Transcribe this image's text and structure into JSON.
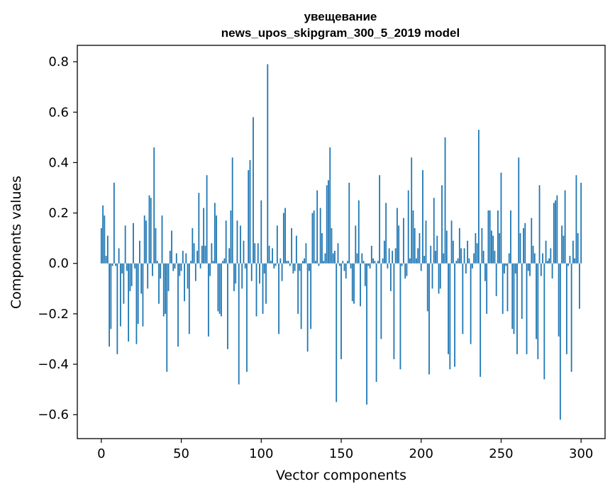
{
  "chart_data": {
    "type": "bar",
    "title_line1": "увещевание",
    "title_line2": "news_upos_skipgram_300_5_2019 model",
    "xlabel": "Vector components",
    "ylabel": "Components values",
    "xlim": [
      -15,
      315
    ],
    "ylim": [
      -0.695,
      0.865
    ],
    "xticks": [
      0,
      50,
      100,
      150,
      200,
      250,
      300
    ],
    "yticks": [
      -0.6,
      -0.4,
      -0.2,
      0.0,
      0.2,
      0.4,
      0.6,
      0.8
    ],
    "xtick_labels": [
      "0",
      "50",
      "100",
      "150",
      "200",
      "250",
      "300"
    ],
    "ytick_labels": [
      "−0.6",
      "−0.4",
      "−0.2",
      "0.0",
      "0.2",
      "0.4",
      "0.6",
      "0.8"
    ],
    "bar_color": "#1f77b4",
    "grid": false,
    "legend": "none",
    "values": [
      0.14,
      0.23,
      0.19,
      0.03,
      0.11,
      -0.33,
      -0.26,
      -0.01,
      0.32,
      -0.01,
      -0.36,
      0.06,
      -0.25,
      -0.04,
      -0.16,
      0.15,
      -0.03,
      -0.31,
      -0.11,
      -0.09,
      0.16,
      -0.02,
      -0.32,
      -0.24,
      0.09,
      -0.12,
      -0.25,
      0.19,
      0.17,
      -0.1,
      0.27,
      0.26,
      -0.05,
      0.46,
      0.14,
      0.01,
      -0.16,
      -0.06,
      0.19,
      -0.21,
      -0.2,
      -0.43,
      -0.11,
      0.05,
      0.13,
      -0.03,
      -0.02,
      0.04,
      -0.33,
      -0.05,
      -0.03,
      0.05,
      -0.15,
      0.04,
      -0.1,
      -0.28,
      0.01,
      0.14,
      0.08,
      -0.07,
      0.05,
      0.28,
      -0.02,
      0.07,
      0.22,
      0.07,
      0.35,
      -0.29,
      -0.05,
      0.08,
      0.01,
      0.24,
      0.19,
      -0.19,
      -0.2,
      -0.21,
      0.01,
      0.02,
      0.17,
      -0.34,
      0.06,
      0.21,
      0.42,
      -0.11,
      -0.08,
      0.17,
      -0.48,
      0.15,
      -0.1,
      0.09,
      -0.02,
      -0.43,
      0.37,
      0.41,
      -0.07,
      0.58,
      0.08,
      -0.21,
      0.08,
      -0.08,
      0.25,
      -0.2,
      -0.04,
      -0.16,
      0.79,
      0.07,
      0.01,
      0.06,
      -0.02,
      -0.01,
      0.15,
      -0.28,
      0.02,
      -0.07,
      0.2,
      0.22,
      0.01,
      0.01,
      -0.01,
      0.14,
      -0.04,
      -0.03,
      0.11,
      -0.2,
      -0.03,
      -0.26,
      0.01,
      0.02,
      0.08,
      -0.35,
      -0.03,
      -0.26,
      0.2,
      0.21,
      0.01,
      0.29,
      -0.01,
      0.22,
      0.12,
      0.01,
      0.04,
      0.31,
      0.33,
      0.46,
      0.14,
      0.04,
      0.05,
      -0.55,
      0.08,
      -0.01,
      -0.38,
      0.01,
      -0.03,
      -0.06,
      0.01,
      0.32,
      -0.02,
      -0.15,
      -0.16,
      0.15,
      0.04,
      0.25,
      -0.17,
      0.04,
      0.01,
      -0.09,
      -0.56,
      -0.01,
      -0.02,
      0.07,
      0.02,
      0.01,
      -0.47,
      0.01,
      0.35,
      -0.3,
      0.02,
      0.09,
      0.24,
      -0.02,
      0.06,
      -0.11,
      0.05,
      -0.38,
      0.06,
      0.22,
      0.15,
      -0.42,
      -0.01,
      0.18,
      -0.06,
      -0.05,
      0.29,
      0.02,
      0.42,
      0.21,
      0.14,
      0.02,
      0.06,
      0.12,
      -0.03,
      0.37,
      0.03,
      0.17,
      -0.19,
      -0.44,
      0.07,
      -0.1,
      0.26,
      0.05,
      0.11,
      -0.12,
      -0.1,
      0.31,
      0.04,
      0.5,
      0.13,
      -0.36,
      -0.42,
      0.17,
      0.09,
      -0.41,
      0.01,
      0.02,
      0.14,
      0.06,
      -0.28,
      0.06,
      -0.04,
      0.09,
      0.02,
      -0.32,
      -0.02,
      0.04,
      0.12,
      0.08,
      0.53,
      -0.45,
      0.14,
      0.05,
      -0.07,
      -0.2,
      0.21,
      0.21,
      0.13,
      0.11,
      0.05,
      -0.13,
      0.21,
      0.12,
      0.36,
      -0.2,
      -0.04,
      -0.01,
      -0.19,
      0.04,
      0.21,
      -0.26,
      -0.28,
      -0.04,
      -0.36,
      0.42,
      0.12,
      -0.22,
      0.14,
      0.16,
      -0.36,
      -0.03,
      -0.05,
      0.18,
      0.07,
      0.04,
      -0.3,
      -0.38,
      0.31,
      -0.05,
      0.04,
      -0.46,
      0.09,
      0.01,
      0.02,
      0.06,
      -0.06,
      0.24,
      0.25,
      0.27,
      -0.29,
      -0.62,
      0.15,
      0.11,
      0.29,
      -0.36,
      -0.01,
      0.03,
      -0.43,
      0.09,
      0.02,
      0.35,
      0.12,
      -0.18,
      0.32
    ]
  }
}
